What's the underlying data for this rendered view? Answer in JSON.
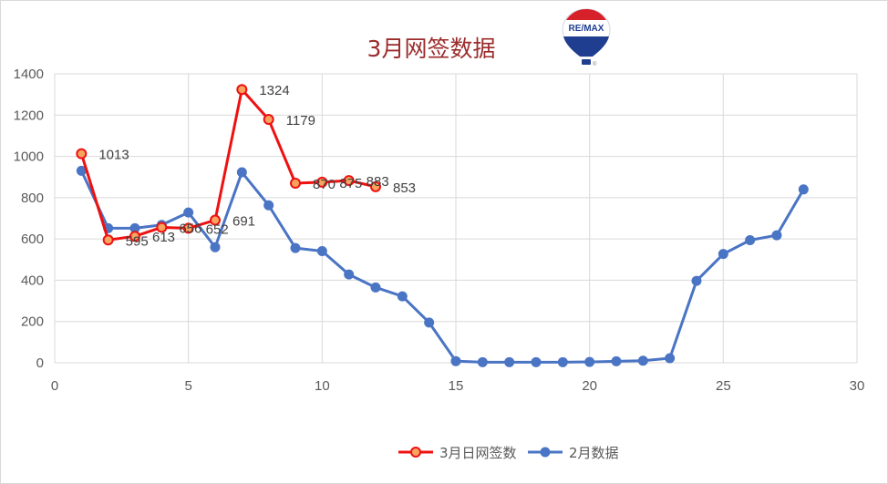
{
  "chart_data": {
    "type": "line",
    "title": "3月网签数据",
    "xlabel": "",
    "ylabel": "",
    "xlim": [
      0,
      30
    ],
    "ylim": [
      0,
      1400
    ],
    "x_ticks": [
      "0",
      "5",
      "10",
      "15",
      "20",
      "25",
      "30"
    ],
    "y_ticks": [
      "0",
      "200",
      "400",
      "600",
      "800",
      "1000",
      "1200",
      "1400"
    ],
    "grid": true,
    "legend_position": "bottom",
    "series": [
      {
        "name": "3月日网签数",
        "color": "#ee1111",
        "marker_fill": "#f6a460",
        "x": [
          1,
          2,
          3,
          4,
          5,
          6,
          7,
          8,
          9,
          10,
          11,
          12
        ],
        "values": [
          1013,
          595,
          613,
          656,
          652,
          691,
          1324,
          1179,
          870,
          875,
          883,
          853
        ],
        "data_labels": [
          "1013",
          "595",
          "613",
          "656",
          "652",
          "691",
          "1324",
          "1179",
          "870",
          "875",
          "883",
          "853"
        ]
      },
      {
        "name": "2月数据",
        "color": "#4a74c4",
        "marker_fill": "#4a74c4",
        "x": [
          1,
          2,
          3,
          4,
          5,
          6,
          7,
          8,
          9,
          10,
          11,
          12,
          13,
          14,
          15,
          16,
          17,
          18,
          19,
          20,
          21,
          22,
          23,
          24,
          25,
          26,
          27,
          28
        ],
        "values": [
          930,
          652,
          652,
          668,
          728,
          560,
          923,
          763,
          556,
          541,
          428,
          365,
          322,
          195,
          8,
          3,
          3,
          3,
          3,
          4,
          7,
          10,
          22,
          397,
          527,
          594,
          618,
          840
        ]
      }
    ]
  },
  "logo": {
    "text": "RE/MAX",
    "mark": "®",
    "colors": {
      "red": "#d6202a",
      "blue": "#1f3e8f",
      "white": "#ffffff"
    }
  }
}
